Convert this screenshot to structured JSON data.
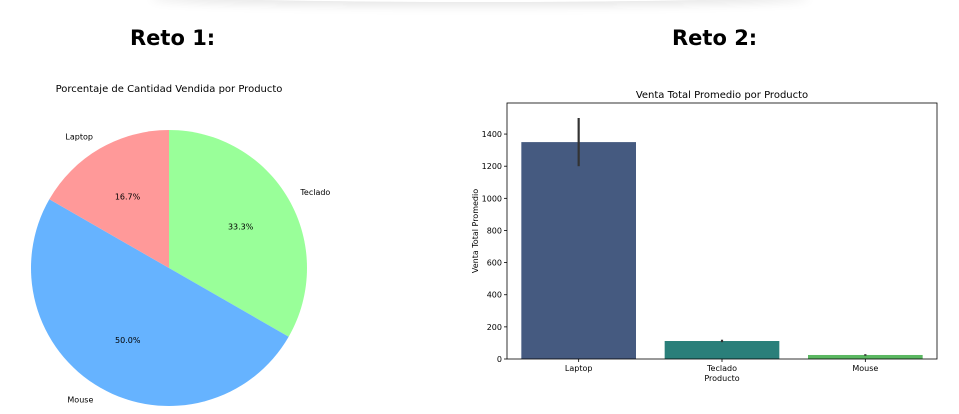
{
  "headings": {
    "left": "Reto 1:",
    "right": "Reto 2:"
  },
  "chart_data": [
    {
      "type": "pie",
      "title": "Porcentaje de Cantidad Vendida por Producto",
      "slices": [
        {
          "label": "Teclado",
          "value": 33.3,
          "pct_label": "33.3%",
          "color": "#99ff99"
        },
        {
          "label": "Mouse",
          "value": 50.0,
          "pct_label": "50.0%",
          "color": "#66b3ff"
        },
        {
          "label": "Laptop",
          "value": 16.7,
          "pct_label": "16.7%",
          "color": "#ff9999"
        }
      ],
      "start_angle": 90,
      "direction": "clockwise"
    },
    {
      "type": "bar",
      "title": "Venta Total Promedio por Producto",
      "xlabel": "Producto",
      "ylabel": "Venta Total Promedio",
      "categories": [
        "Laptop",
        "Teclado",
        "Mouse"
      ],
      "values": [
        1350,
        112,
        25
      ],
      "error_low": [
        1200,
        105,
        20
      ],
      "error_high": [
        1500,
        120,
        30
      ],
      "colors": [
        "#455a80",
        "#2a7f7a",
        "#5bb862"
      ],
      "ylim": [
        0,
        1500
      ],
      "yticks": [
        0,
        200,
        400,
        600,
        800,
        1000,
        1200,
        1400
      ],
      "grid": false
    }
  ]
}
